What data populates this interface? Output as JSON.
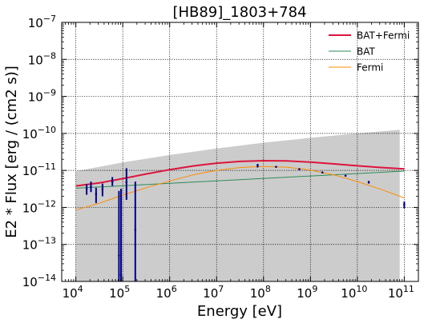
{
  "chart_data": {
    "type": "line",
    "title": "[HB89]_1803+784",
    "xlabel": "Energy [eV]",
    "ylabel": "E2 * Flux [erg / (cm2 s)]",
    "x_scale": "log",
    "y_scale": "log",
    "xlim": [
      5000,
      200000000000
    ],
    "ylim": [
      1e-14,
      1e-07
    ],
    "grid": true,
    "legend_position": "top-right",
    "x_ticks": [
      {
        "value": 10000,
        "base": "10",
        "exp": "4"
      },
      {
        "value": 100000,
        "base": "10",
        "exp": "5"
      },
      {
        "value": 1000000,
        "base": "10",
        "exp": "6"
      },
      {
        "value": 10000000,
        "base": "10",
        "exp": "7"
      },
      {
        "value": 100000000,
        "base": "10",
        "exp": "8"
      },
      {
        "value": 1000000000,
        "base": "10",
        "exp": "9"
      },
      {
        "value": 10000000000,
        "base": "10",
        "exp": "10"
      },
      {
        "value": 100000000000,
        "base": "10",
        "exp": "11"
      }
    ],
    "y_ticks": [
      {
        "value": 1e-14,
        "base": "10",
        "exp": "−14"
      },
      {
        "value": 1e-13,
        "base": "10",
        "exp": "−13"
      },
      {
        "value": 1e-12,
        "base": "10",
        "exp": "−12"
      },
      {
        "value": 1e-11,
        "base": "10",
        "exp": "−11"
      },
      {
        "value": 1e-10,
        "base": "10",
        "exp": "−10"
      },
      {
        "value": 1e-09,
        "base": "10",
        "exp": "−9"
      },
      {
        "value": 1e-08,
        "base": "10",
        "exp": "−8"
      },
      {
        "value": 1e-07,
        "base": "10",
        "exp": "−7"
      }
    ],
    "band": {
      "color": "#cccccc",
      "x": [
        10000,
        100000,
        1000000,
        10000000,
        100000000,
        1000000000,
        10000000000,
        80000000000
      ],
      "upper": [
        9.5e-12,
        1.65e-11,
        2.6e-11,
        3.9e-11,
        5.6e-11,
        7.6e-11,
        1e-10,
        1.25e-10
      ],
      "lower": [
        1e-14,
        1e-14,
        1e-14,
        1e-14,
        1e-14,
        1e-14,
        1e-14,
        1e-14
      ]
    },
    "series": [
      {
        "name": "BAT+Fermi",
        "color": "#dc143c",
        "width": 2,
        "x": [
          10000,
          31600,
          100000,
          316000,
          1000000,
          3160000,
          10000000,
          31600000,
          100000000,
          316000000,
          1000000000,
          3160000000,
          10000000000,
          31600000000,
          100000000000
        ],
        "y": [
          3.8e-12,
          4.6e-12,
          6e-12,
          8e-12,
          1.05e-11,
          1.32e-11,
          1.57e-11,
          1.75e-11,
          1.83e-11,
          1.8e-11,
          1.67e-11,
          1.5e-11,
          1.33e-11,
          1.2e-11,
          1.1e-11
        ]
      },
      {
        "name": "BAT",
        "color": "#2e8b57",
        "width": 1,
        "x": [
          10000,
          100000000000
        ],
        "y": [
          3.3e-12,
          9.6e-12
        ]
      },
      {
        "name": "Fermi",
        "color": "#ff8c00",
        "width": 1,
        "x": [
          10000,
          31600,
          100000,
          316000,
          1000000,
          3160000,
          10000000,
          31600000,
          100000000,
          316000000,
          1000000000,
          3160000000,
          10000000000,
          31600000000,
          100000000000
        ],
        "y": [
          8.5e-13,
          1.3e-12,
          2.15e-12,
          3.4e-12,
          5.2e-12,
          7.6e-12,
          1e-11,
          1.2e-11,
          1.28e-11,
          1.22e-11,
          1.02e-11,
          7.6e-12,
          5e-12,
          3.1e-12,
          1.8e-12
        ]
      }
    ],
    "points": {
      "color": "#00008b",
      "data": [
        {
          "x": 17000,
          "y": 3.2e-12,
          "lo": 2.2e-12,
          "hi": 4.3e-12
        },
        {
          "x": 21000,
          "y": 3.6e-12,
          "lo": 2.6e-12,
          "hi": 5e-12
        },
        {
          "x": 27000,
          "y": 2.3e-12,
          "lo": 1.3e-12,
          "hi": 3.4e-12
        },
        {
          "x": 37000,
          "y": 3.1e-12,
          "lo": 2e-12,
          "hi": 4.4e-12
        },
        {
          "x": 60000,
          "y": 5e-12,
          "lo": 3.8e-12,
          "hi": 6.6e-12
        },
        {
          "x": 83000,
          "y": 5e-14,
          "lo": 1e-14,
          "hi": 2.8e-12
        },
        {
          "x": 92000,
          "y": 1.5e-14,
          "lo": 1e-14,
          "hi": 3.2e-12
        },
        {
          "x": 120000,
          "y": 4.8e-12,
          "lo": 1.6e-12,
          "hi": 1.15e-11
        },
        {
          "x": 185000,
          "y": 2.5e-13,
          "lo": 1e-14,
          "hi": 5e-12
        },
        {
          "x": 75000000,
          "y": 1.35e-11,
          "lo": 1.2e-11,
          "hi": 1.5e-11
        },
        {
          "x": 185000000,
          "y": 1.25e-11,
          "lo": 1.2e-11,
          "hi": 1.3e-11
        },
        {
          "x": 580000000,
          "y": 1.08e-11,
          "lo": 1.04e-11,
          "hi": 1.12e-11
        },
        {
          "x": 1800000000,
          "y": 8.8e-12,
          "lo": 8.4e-12,
          "hi": 9.2e-12
        },
        {
          "x": 5600000000,
          "y": 7.2e-12,
          "lo": 6.8e-12,
          "hi": 7.6e-12
        },
        {
          "x": 17500000000,
          "y": 4.8e-12,
          "lo": 4.4e-12,
          "hi": 5.2e-12
        },
        {
          "x": 100000000000,
          "y": 1.2e-12,
          "lo": 9.5e-13,
          "hi": 1.45e-12
        }
      ]
    }
  }
}
